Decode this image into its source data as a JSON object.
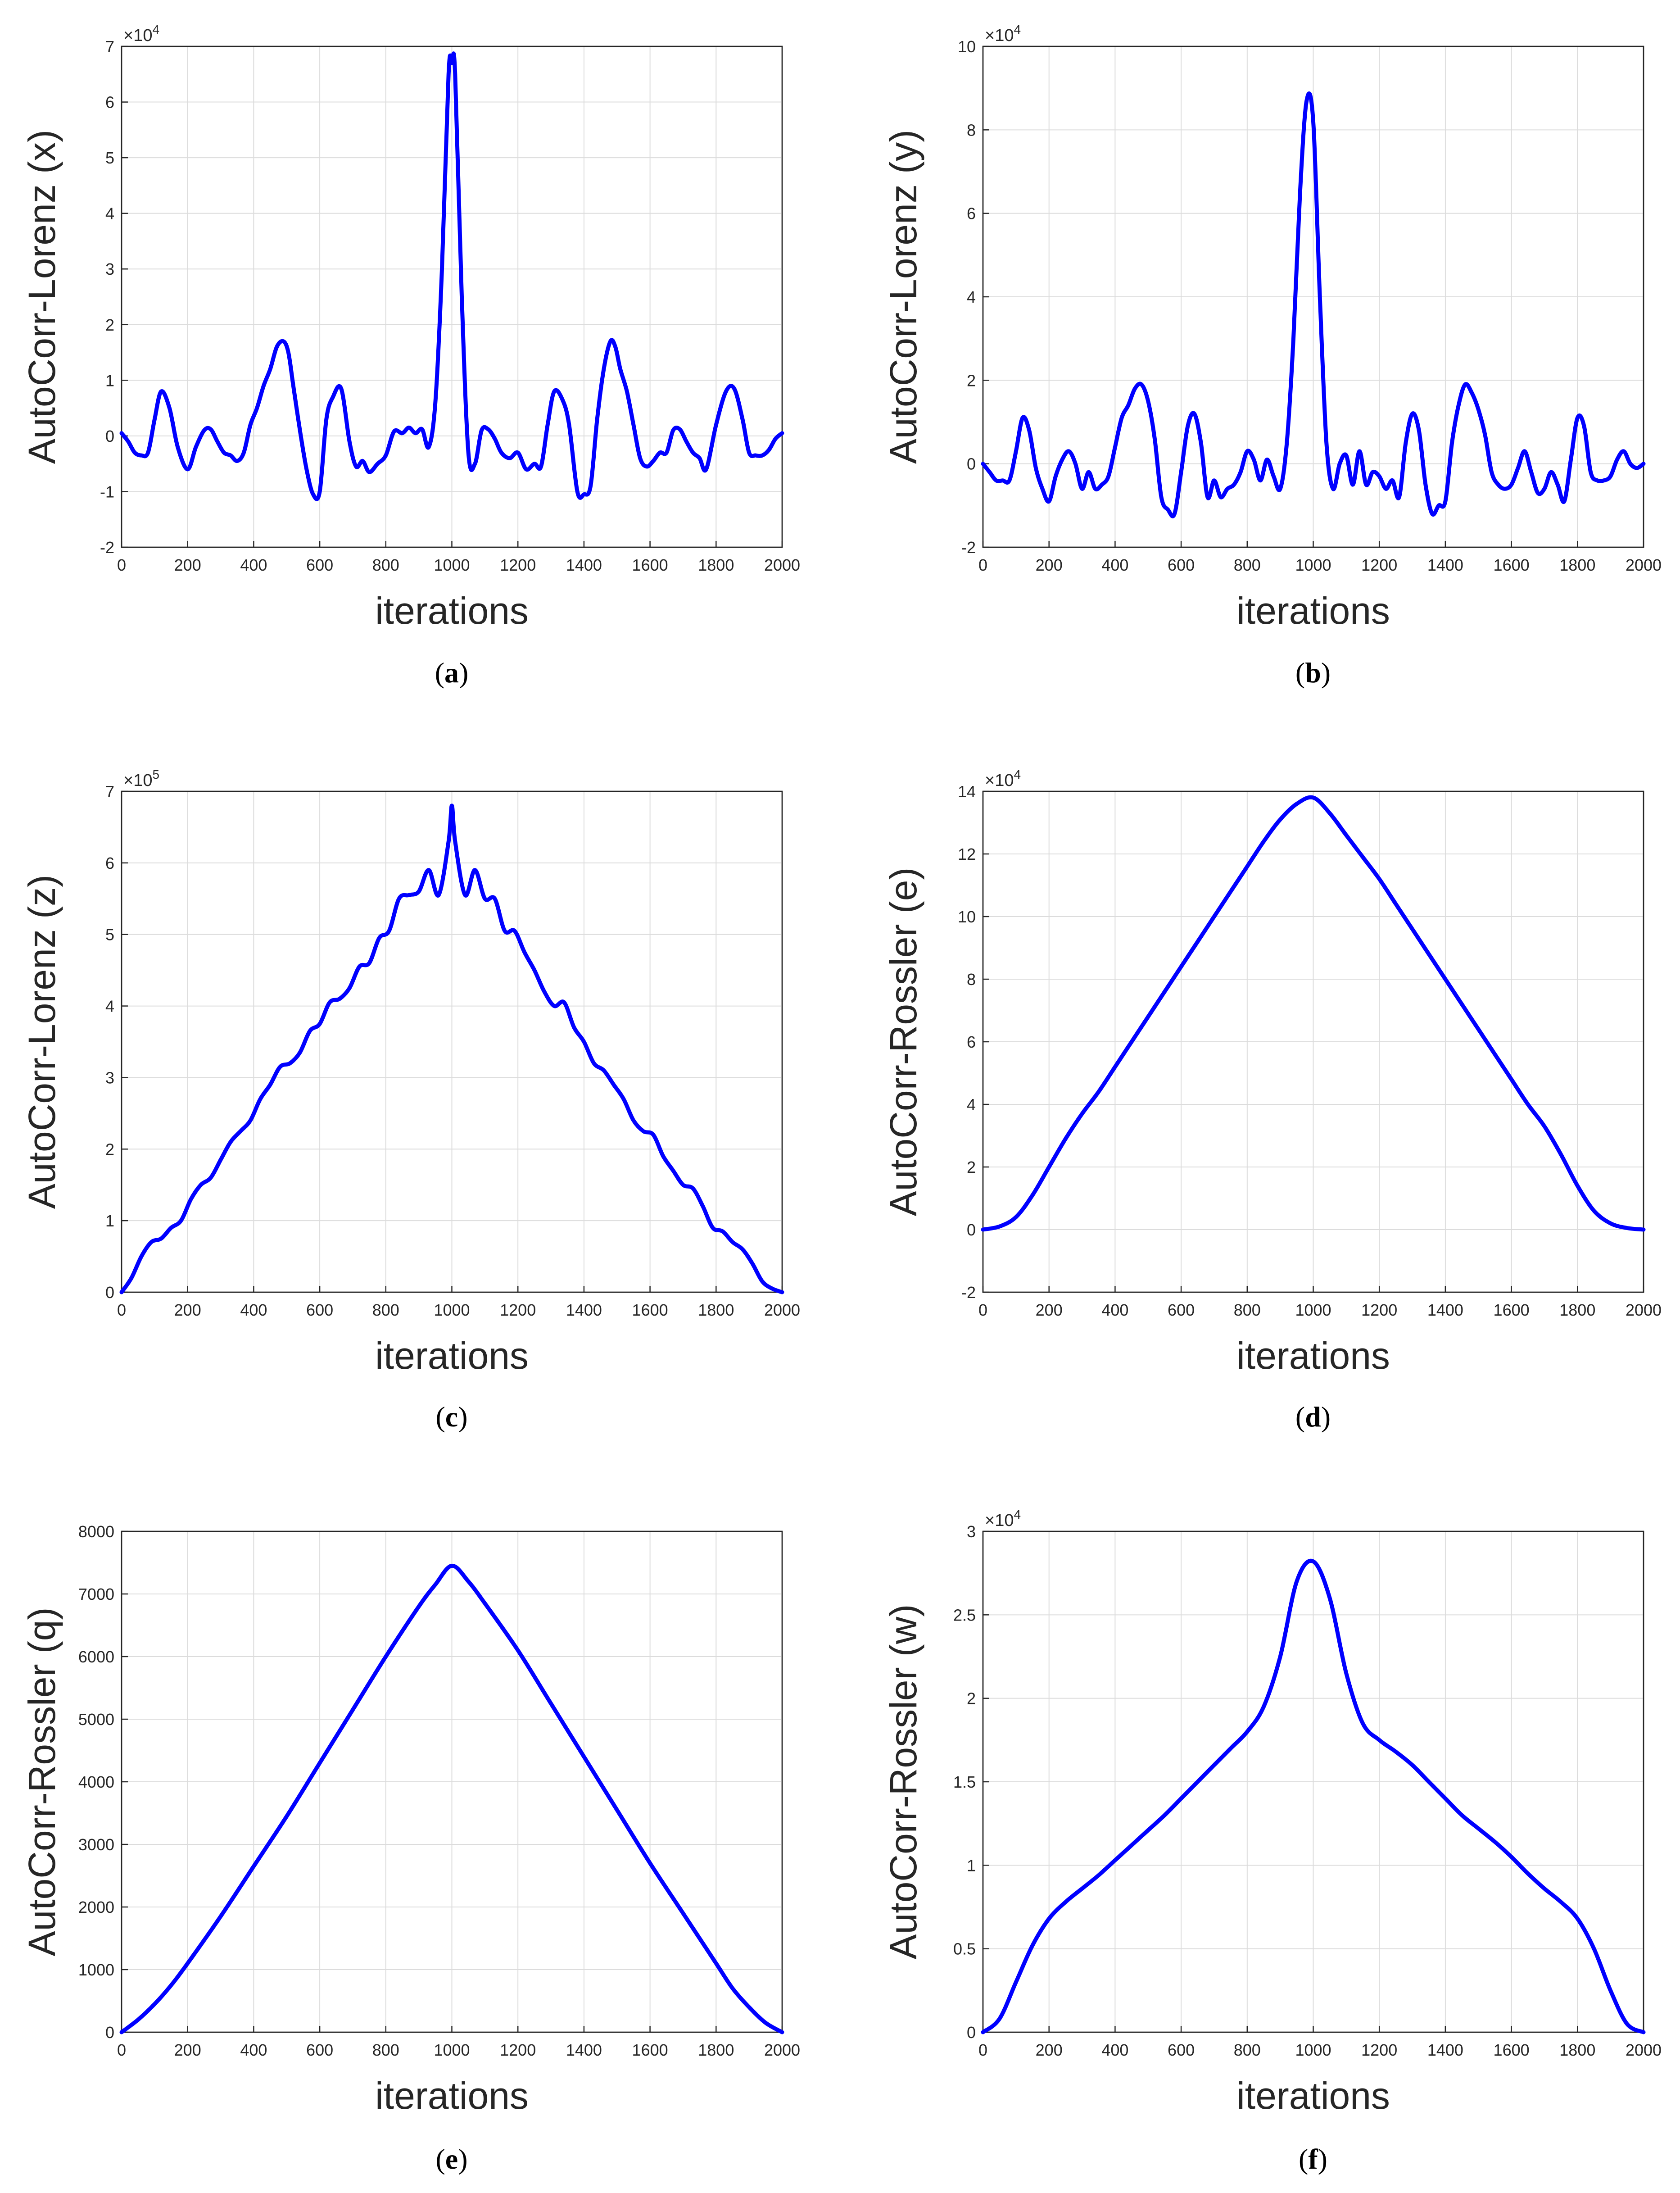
{
  "chart_data": [
    {
      "panel_label": "a",
      "type": "line",
      "xlabel": "iterations",
      "ylabel": "AutoCorr-Lorenz (x)",
      "xlim": [
        0,
        2000
      ],
      "ylim": [
        -2,
        7
      ],
      "multiplier": "×10",
      "multiplier_exp": "4",
      "xticks": [
        "0",
        "200",
        "400",
        "600",
        "800",
        "1000",
        "1200",
        "1400",
        "1600",
        "1800",
        "2000"
      ],
      "yticks": [
        "-2",
        "-1",
        "0",
        "1",
        "2",
        "3",
        "4",
        "5",
        "6",
        "7"
      ],
      "series": [
        {
          "name": "autocorr",
          "x": [
            0,
            20,
            40,
            60,
            80,
            100,
            120,
            145,
            170,
            200,
            225,
            250,
            270,
            290,
            310,
            330,
            350,
            370,
            390,
            410,
            430,
            450,
            470,
            490,
            505,
            520,
            540,
            560,
            580,
            600,
            620,
            640,
            665,
            690,
            710,
            730,
            750,
            775,
            800,
            825,
            850,
            870,
            890,
            910,
            930,
            950,
            970,
            990,
            1000,
            1010,
            1030,
            1050,
            1070,
            1090,
            1110,
            1130,
            1150,
            1175,
            1200,
            1225,
            1250,
            1270,
            1290,
            1310,
            1335,
            1355,
            1380,
            1400,
            1420,
            1440,
            1460,
            1480,
            1495,
            1510,
            1530,
            1550,
            1570,
            1590,
            1610,
            1630,
            1650,
            1670,
            1690,
            1710,
            1730,
            1750,
            1770,
            1800,
            1830,
            1855,
            1880,
            1900,
            1920,
            1940,
            1960,
            1980,
            2000
          ],
          "y": [
            0.05,
            -0.1,
            -0.3,
            -0.35,
            -0.3,
            0.3,
            0.8,
            0.5,
            -0.2,
            -0.6,
            -0.2,
            0.1,
            0.12,
            -0.1,
            -0.3,
            -0.35,
            -0.45,
            -0.3,
            0.2,
            0.5,
            0.9,
            1.2,
            1.6,
            1.7,
            1.5,
            0.9,
            0.1,
            -0.6,
            -1.05,
            -1.0,
            0.3,
            0.7,
            0.85,
            -0.1,
            -0.55,
            -0.45,
            -0.65,
            -0.5,
            -0.35,
            0.08,
            0.05,
            0.15,
            0.05,
            0.12,
            -0.2,
            0.6,
            3.0,
            6.5,
            6.7,
            6.5,
            2.5,
            -0.3,
            -0.5,
            0.1,
            0.12,
            -0.05,
            -0.3,
            -0.4,
            -0.3,
            -0.6,
            -0.5,
            -0.55,
            0.2,
            0.8,
            0.65,
            0.2,
            -1.0,
            -1.05,
            -0.9,
            0.3,
            1.2,
            1.7,
            1.6,
            1.2,
            0.8,
            0.2,
            -0.4,
            -0.55,
            -0.45,
            -0.3,
            -0.3,
            0.1,
            0.12,
            -0.1,
            -0.3,
            -0.4,
            -0.6,
            0.2,
            0.8,
            0.85,
            0.3,
            -0.3,
            -0.35,
            -0.35,
            -0.25,
            -0.05,
            0.05
          ]
        }
      ]
    },
    {
      "panel_label": "b",
      "type": "line",
      "xlabel": "iterations",
      "ylabel": "AutoCorr-Lorenz (y)",
      "xlim": [
        0,
        2000
      ],
      "ylim": [
        -2,
        10
      ],
      "multiplier": "×10",
      "multiplier_exp": "4",
      "xticks": [
        "0",
        "200",
        "400",
        "600",
        "800",
        "1000",
        "1200",
        "1400",
        "1600",
        "1800",
        "2000"
      ],
      "yticks": [
        "-2",
        "0",
        "2",
        "4",
        "6",
        "8",
        "10"
      ],
      "series": [
        {
          "name": "autocorr",
          "x": [
            0,
            20,
            40,
            60,
            80,
            100,
            120,
            140,
            160,
            180,
            200,
            220,
            240,
            260,
            280,
            300,
            320,
            340,
            360,
            380,
            400,
            420,
            440,
            460,
            480,
            500,
            520,
            540,
            560,
            580,
            600,
            620,
            640,
            660,
            680,
            700,
            720,
            740,
            760,
            780,
            800,
            820,
            840,
            860,
            880,
            900,
            920,
            940,
            960,
            980,
            1000,
            1020,
            1040,
            1060,
            1080,
            1100,
            1120,
            1140,
            1160,
            1180,
            1200,
            1220,
            1240,
            1260,
            1280,
            1300,
            1320,
            1340,
            1360,
            1380,
            1400,
            1420,
            1440,
            1460,
            1480,
            1500,
            1520,
            1540,
            1560,
            1580,
            1600,
            1620,
            1640,
            1660,
            1680,
            1700,
            1720,
            1740,
            1760,
            1780,
            1800,
            1820,
            1840,
            1860,
            1880,
            1900,
            1920,
            1940,
            1960,
            1980,
            2000
          ],
          "y": [
            0,
            -0.2,
            -0.4,
            -0.4,
            -0.4,
            0.3,
            1.1,
            0.8,
            -0.1,
            -0.6,
            -0.9,
            -0.3,
            0.1,
            0.3,
            0,
            -0.6,
            -0.2,
            -0.6,
            -0.5,
            -0.3,
            0.4,
            1.1,
            1.4,
            1.8,
            1.9,
            1.5,
            0.6,
            -0.8,
            -1.1,
            -1.2,
            -0.2,
            0.9,
            1.2,
            0.5,
            -0.8,
            -0.4,
            -0.8,
            -0.6,
            -0.5,
            -0.2,
            0.3,
            0.1,
            -0.4,
            0.1,
            -0.3,
            -0.6,
            0.5,
            3.0,
            6.5,
            8.7,
            8.2,
            4.0,
            0.5,
            -0.6,
            0,
            0.2,
            -0.5,
            0.3,
            -0.5,
            -0.2,
            -0.3,
            -0.6,
            -0.4,
            -0.8,
            0.5,
            1.2,
            0.8,
            -0.5,
            -1.2,
            -1.0,
            -0.9,
            0.5,
            1.4,
            1.9,
            1.7,
            1.3,
            0.7,
            -0.2,
            -0.5,
            -0.6,
            -0.5,
            -0.1,
            0.3,
            -0.2,
            -0.7,
            -0.6,
            -0.2,
            -0.5,
            -0.9,
            0.1,
            1.1,
            0.9,
            -0.2,
            -0.4,
            -0.4,
            -0.3,
            0.1,
            0.3,
            0,
            -0.1,
            0
          ]
        }
      ]
    },
    {
      "panel_label": "c",
      "type": "line",
      "xlabel": "iterations",
      "ylabel": "AutoCorr-Lorenz (z)",
      "xlim": [
        0,
        2000
      ],
      "ylim": [
        0,
        7
      ],
      "multiplier": "×10",
      "multiplier_exp": "5",
      "xticks": [
        "0",
        "200",
        "400",
        "600",
        "800",
        "1000",
        "1200",
        "1400",
        "1600",
        "1800",
        "2000"
      ],
      "yticks": [
        "0",
        "1",
        "2",
        "3",
        "4",
        "5",
        "6",
        "7"
      ],
      "series": [
        {
          "name": "autocorr",
          "x": [
            0,
            30,
            60,
            90,
            120,
            150,
            180,
            210,
            240,
            270,
            300,
            330,
            360,
            390,
            420,
            450,
            480,
            510,
            540,
            570,
            600,
            630,
            660,
            690,
            720,
            750,
            780,
            810,
            840,
            870,
            900,
            930,
            960,
            990,
            1000,
            1010,
            1040,
            1070,
            1100,
            1130,
            1160,
            1190,
            1220,
            1250,
            1280,
            1310,
            1340,
            1370,
            1400,
            1430,
            1460,
            1490,
            1520,
            1550,
            1580,
            1610,
            1640,
            1670,
            1700,
            1730,
            1760,
            1790,
            1820,
            1850,
            1880,
            1910,
            1940,
            1970,
            2000
          ],
          "y": [
            0,
            0.2,
            0.5,
            0.7,
            0.75,
            0.9,
            1.0,
            1.3,
            1.5,
            1.6,
            1.85,
            2.1,
            2.25,
            2.4,
            2.7,
            2.9,
            3.15,
            3.2,
            3.35,
            3.65,
            3.75,
            4.05,
            4.1,
            4.25,
            4.55,
            4.6,
            4.95,
            5.05,
            5.5,
            5.55,
            5.6,
            5.9,
            5.55,
            6.3,
            6.8,
            6.3,
            5.55,
            5.9,
            5.5,
            5.5,
            5.05,
            5.05,
            4.75,
            4.5,
            4.2,
            4.0,
            4.05,
            3.7,
            3.5,
            3.2,
            3.1,
            2.9,
            2.7,
            2.4,
            2.25,
            2.2,
            1.9,
            1.7,
            1.5,
            1.45,
            1.2,
            0.9,
            0.85,
            0.7,
            0.6,
            0.4,
            0.15,
            0.05,
            0
          ]
        }
      ]
    },
    {
      "panel_label": "d",
      "type": "line",
      "xlabel": "iterations",
      "ylabel": "AutoCorr-Rossler (e)",
      "xlim": [
        0,
        2000
      ],
      "ylim": [
        -2,
        14
      ],
      "multiplier": "×10",
      "multiplier_exp": "4",
      "xticks": [
        "0",
        "200",
        "400",
        "600",
        "800",
        "1000",
        "1200",
        "1400",
        "1600",
        "1800",
        "2000"
      ],
      "yticks": [
        "-2",
        "0",
        "2",
        "4",
        "6",
        "8",
        "10",
        "12",
        "14"
      ],
      "series": [
        {
          "name": "autocorr",
          "x": [
            0,
            50,
            100,
            150,
            200,
            250,
            300,
            350,
            400,
            450,
            500,
            550,
            600,
            650,
            700,
            750,
            800,
            850,
            900,
            950,
            1000,
            1050,
            1100,
            1150,
            1200,
            1250,
            1300,
            1350,
            1400,
            1450,
            1500,
            1550,
            1600,
            1650,
            1700,
            1750,
            1800,
            1850,
            1900,
            1950,
            2000
          ],
          "y": [
            0,
            0.1,
            0.4,
            1.1,
            2.0,
            2.9,
            3.7,
            4.4,
            5.2,
            6.0,
            6.8,
            7.6,
            8.4,
            9.2,
            10.0,
            10.8,
            11.6,
            12.4,
            13.1,
            13.6,
            13.8,
            13.3,
            12.6,
            11.9,
            11.2,
            10.4,
            9.6,
            8.8,
            8.0,
            7.2,
            6.4,
            5.6,
            4.8,
            4.0,
            3.3,
            2.4,
            1.4,
            0.6,
            0.2,
            0.05,
            0
          ]
        }
      ]
    },
    {
      "panel_label": "e",
      "type": "line",
      "xlabel": "iterations",
      "ylabel": "AutoCorr-Rossler (q)",
      "xlim": [
        0,
        2000
      ],
      "ylim": [
        0,
        8000
      ],
      "multiplier": "",
      "multiplier_exp": "",
      "xticks": [
        "0",
        "200",
        "400",
        "600",
        "800",
        "1000",
        "1200",
        "1400",
        "1600",
        "1800",
        "2000"
      ],
      "yticks": [
        "0",
        "1000",
        "2000",
        "3000",
        "4000",
        "5000",
        "6000",
        "7000",
        "8000"
      ],
      "series": [
        {
          "name": "autocorr",
          "x": [
            0,
            50,
            100,
            150,
            200,
            300,
            400,
            500,
            600,
            700,
            800,
            900,
            950,
            1000,
            1050,
            1100,
            1200,
            1300,
            1400,
            1500,
            1600,
            1700,
            1800,
            1850,
            1900,
            1950,
            2000
          ],
          "y": [
            0,
            200,
            450,
            750,
            1100,
            1850,
            2650,
            3450,
            4300,
            5150,
            6000,
            6800,
            7150,
            7450,
            7200,
            6850,
            6100,
            5250,
            4400,
            3550,
            2700,
            1900,
            1100,
            700,
            400,
            150,
            0
          ]
        }
      ]
    },
    {
      "panel_label": "f",
      "type": "line",
      "xlabel": "iterations",
      "ylabel": "AutoCorr-Rossler (w)",
      "xlim": [
        0,
        2000
      ],
      "ylim": [
        0,
        3
      ],
      "multiplier": "×10",
      "multiplier_exp": "4",
      "xticks": [
        "0",
        "200",
        "400",
        "600",
        "800",
        "1000",
        "1200",
        "1400",
        "1600",
        "1800",
        "2000"
      ],
      "yticks": [
        "0",
        "0.5",
        "1",
        "1.5",
        "2",
        "2.5",
        "3"
      ],
      "series": [
        {
          "name": "autocorr",
          "x": [
            0,
            50,
            100,
            150,
            200,
            250,
            300,
            350,
            400,
            450,
            500,
            550,
            600,
            650,
            700,
            750,
            800,
            850,
            900,
            950,
            1000,
            1050,
            1100,
            1150,
            1200,
            1250,
            1300,
            1350,
            1400,
            1450,
            1500,
            1550,
            1600,
            1650,
            1700,
            1750,
            1800,
            1850,
            1900,
            1950,
            2000
          ],
          "y": [
            0,
            0.08,
            0.3,
            0.52,
            0.68,
            0.78,
            0.86,
            0.94,
            1.03,
            1.12,
            1.21,
            1.3,
            1.4,
            1.5,
            1.6,
            1.7,
            1.8,
            1.95,
            2.25,
            2.7,
            2.82,
            2.6,
            2.15,
            1.85,
            1.75,
            1.68,
            1.6,
            1.5,
            1.4,
            1.3,
            1.22,
            1.14,
            1.05,
            0.95,
            0.86,
            0.78,
            0.68,
            0.5,
            0.25,
            0.05,
            0
          ]
        }
      ]
    }
  ]
}
